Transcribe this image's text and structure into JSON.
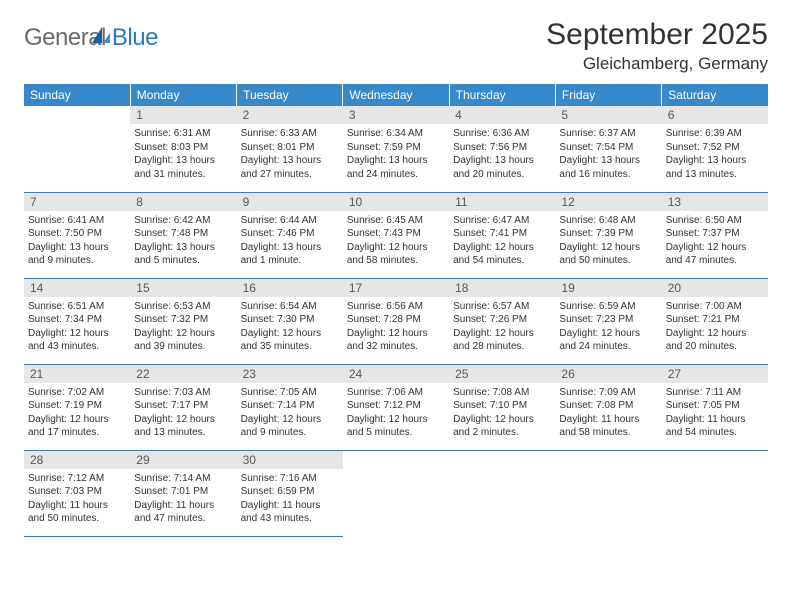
{
  "logo": {
    "general": "General",
    "blue": "Blue"
  },
  "title": "September 2025",
  "location": "Gleichamberg, Germany",
  "colors": {
    "header_bg": "#3789c9",
    "header_text": "#ffffff",
    "daynum_bg": "#e6e6e6",
    "daynum_text": "#595959",
    "cell_border": "#3b7ab3",
    "body_text": "#333333",
    "logo_gray": "#6b6b6b",
    "logo_blue": "#2b79c2",
    "page_bg": "#ffffff"
  },
  "typography": {
    "title_fontsize_pt": 22,
    "location_fontsize_pt": 13,
    "dayheader_fontsize_pt": 9,
    "daynum_fontsize_pt": 9,
    "body_fontsize_pt": 7.5,
    "font_family": "Arial"
  },
  "day_headers": [
    "Sunday",
    "Monday",
    "Tuesday",
    "Wednesday",
    "Thursday",
    "Friday",
    "Saturday"
  ],
  "weeks": [
    [
      {
        "n": "",
        "sunrise": "",
        "sunset": "",
        "daylight": ""
      },
      {
        "n": "1",
        "sunrise": "Sunrise: 6:31 AM",
        "sunset": "Sunset: 8:03 PM",
        "daylight": "Daylight: 13 hours and 31 minutes."
      },
      {
        "n": "2",
        "sunrise": "Sunrise: 6:33 AM",
        "sunset": "Sunset: 8:01 PM",
        "daylight": "Daylight: 13 hours and 27 minutes."
      },
      {
        "n": "3",
        "sunrise": "Sunrise: 6:34 AM",
        "sunset": "Sunset: 7:59 PM",
        "daylight": "Daylight: 13 hours and 24 minutes."
      },
      {
        "n": "4",
        "sunrise": "Sunrise: 6:36 AM",
        "sunset": "Sunset: 7:56 PM",
        "daylight": "Daylight: 13 hours and 20 minutes."
      },
      {
        "n": "5",
        "sunrise": "Sunrise: 6:37 AM",
        "sunset": "Sunset: 7:54 PM",
        "daylight": "Daylight: 13 hours and 16 minutes."
      },
      {
        "n": "6",
        "sunrise": "Sunrise: 6:39 AM",
        "sunset": "Sunset: 7:52 PM",
        "daylight": "Daylight: 13 hours and 13 minutes."
      }
    ],
    [
      {
        "n": "7",
        "sunrise": "Sunrise: 6:41 AM",
        "sunset": "Sunset: 7:50 PM",
        "daylight": "Daylight: 13 hours and 9 minutes."
      },
      {
        "n": "8",
        "sunrise": "Sunrise: 6:42 AM",
        "sunset": "Sunset: 7:48 PM",
        "daylight": "Daylight: 13 hours and 5 minutes."
      },
      {
        "n": "9",
        "sunrise": "Sunrise: 6:44 AM",
        "sunset": "Sunset: 7:46 PM",
        "daylight": "Daylight: 13 hours and 1 minute."
      },
      {
        "n": "10",
        "sunrise": "Sunrise: 6:45 AM",
        "sunset": "Sunset: 7:43 PM",
        "daylight": "Daylight: 12 hours and 58 minutes."
      },
      {
        "n": "11",
        "sunrise": "Sunrise: 6:47 AM",
        "sunset": "Sunset: 7:41 PM",
        "daylight": "Daylight: 12 hours and 54 minutes."
      },
      {
        "n": "12",
        "sunrise": "Sunrise: 6:48 AM",
        "sunset": "Sunset: 7:39 PM",
        "daylight": "Daylight: 12 hours and 50 minutes."
      },
      {
        "n": "13",
        "sunrise": "Sunrise: 6:50 AM",
        "sunset": "Sunset: 7:37 PM",
        "daylight": "Daylight: 12 hours and 47 minutes."
      }
    ],
    [
      {
        "n": "14",
        "sunrise": "Sunrise: 6:51 AM",
        "sunset": "Sunset: 7:34 PM",
        "daylight": "Daylight: 12 hours and 43 minutes."
      },
      {
        "n": "15",
        "sunrise": "Sunrise: 6:53 AM",
        "sunset": "Sunset: 7:32 PM",
        "daylight": "Daylight: 12 hours and 39 minutes."
      },
      {
        "n": "16",
        "sunrise": "Sunrise: 6:54 AM",
        "sunset": "Sunset: 7:30 PM",
        "daylight": "Daylight: 12 hours and 35 minutes."
      },
      {
        "n": "17",
        "sunrise": "Sunrise: 6:56 AM",
        "sunset": "Sunset: 7:28 PM",
        "daylight": "Daylight: 12 hours and 32 minutes."
      },
      {
        "n": "18",
        "sunrise": "Sunrise: 6:57 AM",
        "sunset": "Sunset: 7:26 PM",
        "daylight": "Daylight: 12 hours and 28 minutes."
      },
      {
        "n": "19",
        "sunrise": "Sunrise: 6:59 AM",
        "sunset": "Sunset: 7:23 PM",
        "daylight": "Daylight: 12 hours and 24 minutes."
      },
      {
        "n": "20",
        "sunrise": "Sunrise: 7:00 AM",
        "sunset": "Sunset: 7:21 PM",
        "daylight": "Daylight: 12 hours and 20 minutes."
      }
    ],
    [
      {
        "n": "21",
        "sunrise": "Sunrise: 7:02 AM",
        "sunset": "Sunset: 7:19 PM",
        "daylight": "Daylight: 12 hours and 17 minutes."
      },
      {
        "n": "22",
        "sunrise": "Sunrise: 7:03 AM",
        "sunset": "Sunset: 7:17 PM",
        "daylight": "Daylight: 12 hours and 13 minutes."
      },
      {
        "n": "23",
        "sunrise": "Sunrise: 7:05 AM",
        "sunset": "Sunset: 7:14 PM",
        "daylight": "Daylight: 12 hours and 9 minutes."
      },
      {
        "n": "24",
        "sunrise": "Sunrise: 7:06 AM",
        "sunset": "Sunset: 7:12 PM",
        "daylight": "Daylight: 12 hours and 5 minutes."
      },
      {
        "n": "25",
        "sunrise": "Sunrise: 7:08 AM",
        "sunset": "Sunset: 7:10 PM",
        "daylight": "Daylight: 12 hours and 2 minutes."
      },
      {
        "n": "26",
        "sunrise": "Sunrise: 7:09 AM",
        "sunset": "Sunset: 7:08 PM",
        "daylight": "Daylight: 11 hours and 58 minutes."
      },
      {
        "n": "27",
        "sunrise": "Sunrise: 7:11 AM",
        "sunset": "Sunset: 7:05 PM",
        "daylight": "Daylight: 11 hours and 54 minutes."
      }
    ],
    [
      {
        "n": "28",
        "sunrise": "Sunrise: 7:12 AM",
        "sunset": "Sunset: 7:03 PM",
        "daylight": "Daylight: 11 hours and 50 minutes."
      },
      {
        "n": "29",
        "sunrise": "Sunrise: 7:14 AM",
        "sunset": "Sunset: 7:01 PM",
        "daylight": "Daylight: 11 hours and 47 minutes."
      },
      {
        "n": "30",
        "sunrise": "Sunrise: 7:16 AM",
        "sunset": "Sunset: 6:59 PM",
        "daylight": "Daylight: 11 hours and 43 minutes."
      },
      {
        "n": "",
        "sunrise": "",
        "sunset": "",
        "daylight": ""
      },
      {
        "n": "",
        "sunrise": "",
        "sunset": "",
        "daylight": ""
      },
      {
        "n": "",
        "sunrise": "",
        "sunset": "",
        "daylight": ""
      },
      {
        "n": "",
        "sunrise": "",
        "sunset": "",
        "daylight": ""
      }
    ]
  ]
}
